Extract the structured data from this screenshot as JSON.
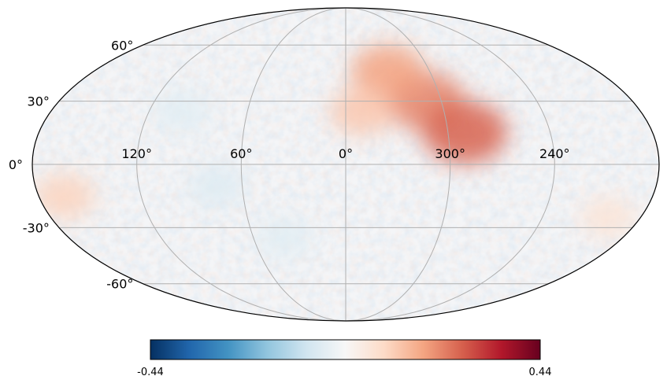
{
  "map": {
    "projection": "mollweide",
    "graticule": {
      "latitude_labels": [
        "60°",
        "30°",
        "0°",
        "-30°",
        "-60°"
      ],
      "latitude_values": [
        60,
        30,
        0,
        -30,
        -60
      ],
      "longitude_labels": [
        "120°",
        "60°",
        "0°",
        "300°",
        "240°"
      ],
      "longitude_values": [
        120,
        60,
        0,
        300,
        240
      ],
      "grid": true
    },
    "colormap": "RdBu_r",
    "colors": {
      "cmap_stops": [
        "#053061",
        "#2166ac",
        "#4393c3",
        "#92c5de",
        "#d1e5f0",
        "#f7f7f7",
        "#fddbc7",
        "#f4a582",
        "#d6604d",
        "#b2182b",
        "#67001f"
      ],
      "grid": "#b0b0b0",
      "outline": "#000000"
    },
    "features": [
      {
        "description": "positive anomaly band",
        "lon": 310,
        "lat": 30,
        "value": 0.22
      },
      {
        "description": "positive anomaly",
        "lon": 290,
        "lat": 15,
        "value": 0.26
      },
      {
        "description": "positive anomaly",
        "lon": 330,
        "lat": 45,
        "value": 0.18
      },
      {
        "description": "positive anomaly",
        "lon": 350,
        "lat": 25,
        "value": 0.12
      },
      {
        "description": "positive anomaly",
        "lon": 165,
        "lat": -15,
        "value": 0.1
      },
      {
        "description": "positive anomaly",
        "lon": 200,
        "lat": -25,
        "value": 0.06
      },
      {
        "description": "negative anomaly",
        "lon": 75,
        "lat": -10,
        "value": -0.06
      },
      {
        "description": "negative anomaly",
        "lon": 100,
        "lat": 25,
        "value": -0.05
      },
      {
        "description": "negative anomaly",
        "lon": 40,
        "lat": -35,
        "value": -0.05
      }
    ]
  },
  "colorbar": {
    "min": -0.44,
    "max": 0.44,
    "min_label": "-0.44",
    "max_label": "0.44"
  }
}
